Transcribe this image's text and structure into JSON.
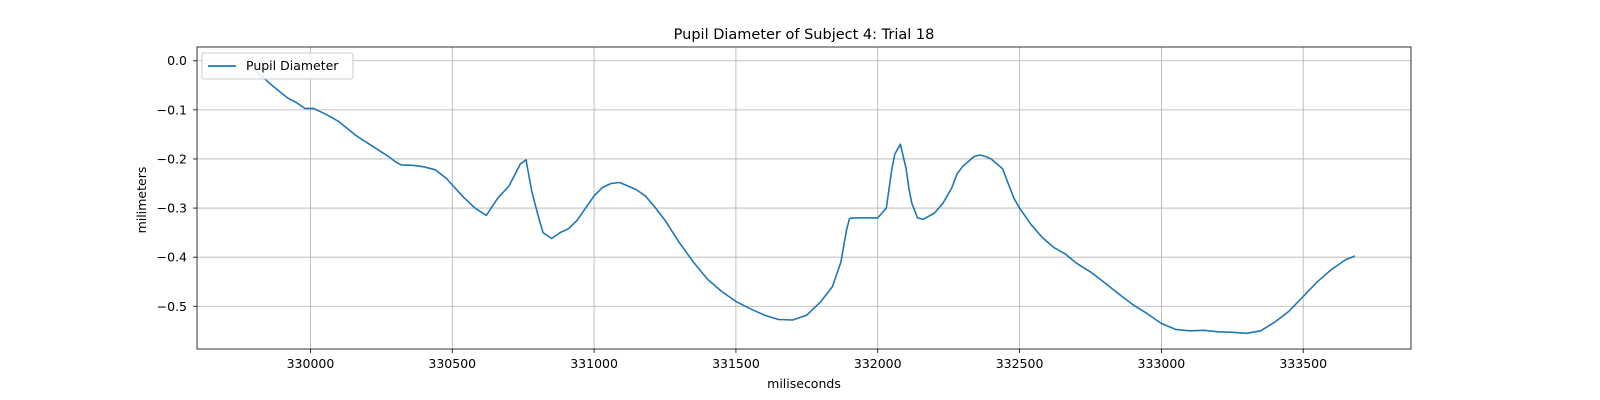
{
  "chart_data": {
    "type": "line",
    "title": "Pupil Diameter of Subject 4: Trial 18",
    "xlabel": "miliseconds",
    "ylabel": "milimeters",
    "xlim": [
      329600,
      333880
    ],
    "ylim": [
      -0.587,
      0.028
    ],
    "xticks": [
      330000,
      330500,
      331000,
      331500,
      332000,
      332500,
      333000,
      333500
    ],
    "yticks": [
      0.0,
      -0.1,
      -0.2,
      -0.3,
      -0.4,
      -0.5
    ],
    "ytick_labels": [
      "0.0",
      "−0.1",
      "−0.2",
      "−0.3",
      "−0.4",
      "−0.5"
    ],
    "grid": true,
    "legend": {
      "position": "top-left"
    },
    "series_color": "#1f77b4",
    "series": [
      {
        "name": "Pupil Diameter",
        "x": [
          329800,
          329830,
          329860,
          329890,
          329920,
          329950,
          329980,
          330010,
          330040,
          330070,
          330100,
          330130,
          330160,
          330200,
          330240,
          330280,
          330300,
          330320,
          330360,
          330400,
          330440,
          330480,
          330500,
          330540,
          330580,
          330620,
          330660,
          330700,
          330740,
          330760,
          330780,
          330800,
          330820,
          330850,
          330880,
          330910,
          330940,
          330970,
          331000,
          331030,
          331060,
          331090,
          331120,
          331150,
          331180,
          331210,
          331250,
          331300,
          331350,
          331400,
          331450,
          331500,
          331550,
          331600,
          331650,
          331700,
          331750,
          331800,
          331840,
          331870,
          331890,
          331900,
          331910,
          331930,
          331960,
          332000,
          332030,
          332050,
          332060,
          332080,
          332100,
          332110,
          332120,
          332140,
          332160,
          332200,
          332230,
          332260,
          332280,
          332300,
          332320,
          332340,
          332360,
          332380,
          332400,
          332420,
          332440,
          332460,
          332480,
          332500,
          332540,
          332580,
          332620,
          332660,
          332700,
          332750,
          332800,
          332850,
          332900,
          332950,
          333000,
          333050,
          333100,
          333150,
          333200,
          333250,
          333300,
          333350,
          333400,
          333450,
          333500,
          333550,
          333600,
          333650,
          333680
        ],
        "y": [
          -0.018,
          -0.032,
          -0.048,
          -0.062,
          -0.076,
          -0.085,
          -0.097,
          -0.097,
          -0.105,
          -0.114,
          -0.124,
          -0.138,
          -0.152,
          -0.167,
          -0.182,
          -0.197,
          -0.206,
          -0.212,
          -0.213,
          -0.216,
          -0.222,
          -0.24,
          -0.253,
          -0.278,
          -0.3,
          -0.315,
          -0.28,
          -0.255,
          -0.21,
          -0.202,
          -0.265,
          -0.31,
          -0.35,
          -0.362,
          -0.35,
          -0.342,
          -0.325,
          -0.3,
          -0.275,
          -0.258,
          -0.25,
          -0.248,
          -0.255,
          -0.263,
          -0.275,
          -0.295,
          -0.325,
          -0.37,
          -0.41,
          -0.445,
          -0.47,
          -0.49,
          -0.505,
          -0.518,
          -0.527,
          -0.528,
          -0.518,
          -0.49,
          -0.46,
          -0.41,
          -0.345,
          -0.322,
          -0.32,
          -0.32,
          -0.32,
          -0.32,
          -0.3,
          -0.22,
          -0.19,
          -0.17,
          -0.22,
          -0.26,
          -0.29,
          -0.32,
          -0.323,
          -0.31,
          -0.29,
          -0.26,
          -0.23,
          -0.215,
          -0.205,
          -0.195,
          -0.192,
          -0.195,
          -0.2,
          -0.21,
          -0.22,
          -0.25,
          -0.28,
          -0.3,
          -0.333,
          -0.36,
          -0.38,
          -0.393,
          -0.412,
          -0.43,
          -0.452,
          -0.475,
          -0.497,
          -0.515,
          -0.535,
          -0.547,
          -0.55,
          -0.549,
          -0.552,
          -0.553,
          -0.555,
          -0.55,
          -0.532,
          -0.51,
          -0.48,
          -0.45,
          -0.425,
          -0.405,
          -0.398
        ]
      }
    ]
  }
}
